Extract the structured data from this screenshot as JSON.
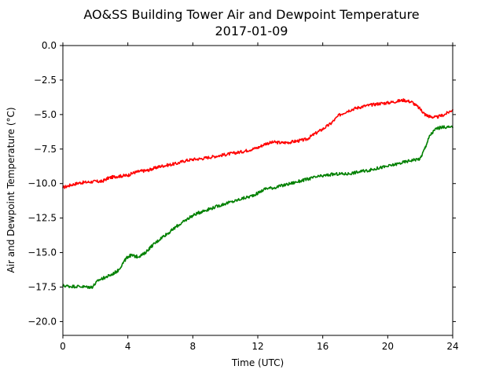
{
  "chart_data": {
    "type": "line",
    "title": "AO&SS Building Tower Air and Dewpoint Temperature",
    "subtitle": "2017-01-09",
    "xlabel": "Time (UTC)",
    "ylabel": "Air and Dewpoint Temperature (°C)",
    "xlim": [
      0,
      24
    ],
    "ylim": [
      -21,
      0
    ],
    "xticks": [
      0,
      4,
      8,
      12,
      16,
      20,
      24
    ],
    "xtick_labels": [
      "0",
      "4",
      "8",
      "12",
      "16",
      "20",
      "24"
    ],
    "yticks": [
      0,
      -2.5,
      -5,
      -7.5,
      -10,
      -12.5,
      -15,
      -17.5,
      -20
    ],
    "ytick_labels": [
      "0.0",
      "−2.5",
      "−5.0",
      "−7.5",
      "−10.0",
      "−12.5",
      "−15.0",
      "−17.5",
      "−20.0"
    ],
    "grid": false,
    "series": [
      {
        "color": "#ff0000",
        "x": [
          0,
          0.5,
          1,
          1.5,
          2,
          2.4,
          2.8,
          3.2,
          3.6,
          4,
          4.4,
          4.8,
          5.2,
          5.6,
          6,
          6.5,
          7,
          7.5,
          8,
          8.5,
          9,
          9.5,
          10,
          10.5,
          11,
          11.5,
          12,
          12.5,
          13,
          13.5,
          14,
          14.5,
          15,
          15.5,
          16,
          16.5,
          17,
          17.5,
          18,
          18.5,
          19,
          19.5,
          20,
          20.5,
          21,
          21.5,
          22,
          22.3,
          22.6,
          23,
          23.5,
          24
        ],
        "y": [
          -10.3,
          -10.1,
          -9.95,
          -9.9,
          -9.85,
          -9.85,
          -9.6,
          -9.5,
          -9.45,
          -9.4,
          -9.2,
          -9.1,
          -9.05,
          -8.9,
          -8.75,
          -8.65,
          -8.55,
          -8.35,
          -8.25,
          -8.2,
          -8.1,
          -8.0,
          -7.9,
          -7.8,
          -7.7,
          -7.55,
          -7.4,
          -7.1,
          -7.0,
          -7.05,
          -7.0,
          -6.9,
          -6.8,
          -6.4,
          -6.05,
          -5.65,
          -5.05,
          -4.75,
          -4.55,
          -4.4,
          -4.3,
          -4.2,
          -4.15,
          -4.05,
          -3.95,
          -4.1,
          -4.6,
          -5.0,
          -5.15,
          -5.2,
          -5.0,
          -4.65
        ]
      },
      {
        "color": "#008000",
        "x": [
          0,
          0.5,
          1,
          1.5,
          1.8,
          2.2,
          2.6,
          3,
          3.4,
          3.8,
          4,
          4.2,
          4.6,
          5,
          5.4,
          5.8,
          6.2,
          6.6,
          7,
          7.4,
          7.8,
          8.2,
          8.6,
          9,
          9.5,
          10,
          10.5,
          11,
          11.5,
          12,
          12.5,
          13,
          13.5,
          14,
          14.5,
          15,
          15.5,
          16,
          16.5,
          17,
          17.5,
          18,
          18.5,
          19,
          19.5,
          20,
          20.5,
          21,
          21.5,
          22,
          22.3,
          22.6,
          23,
          23.5,
          24
        ],
        "y": [
          -17.4,
          -17.45,
          -17.45,
          -17.5,
          -17.5,
          -17.0,
          -16.8,
          -16.6,
          -16.3,
          -15.6,
          -15.3,
          -15.2,
          -15.3,
          -15.1,
          -14.6,
          -14.2,
          -13.8,
          -13.5,
          -13.1,
          -12.8,
          -12.45,
          -12.2,
          -12.0,
          -11.85,
          -11.65,
          -11.45,
          -11.3,
          -11.1,
          -10.95,
          -10.7,
          -10.35,
          -10.3,
          -10.15,
          -10.0,
          -9.85,
          -9.7,
          -9.55,
          -9.45,
          -9.35,
          -9.3,
          -9.3,
          -9.2,
          -9.1,
          -9.0,
          -8.85,
          -8.75,
          -8.6,
          -8.45,
          -8.3,
          -8.2,
          -7.4,
          -6.5,
          -6.0,
          -5.9,
          -5.95
        ]
      }
    ]
  }
}
